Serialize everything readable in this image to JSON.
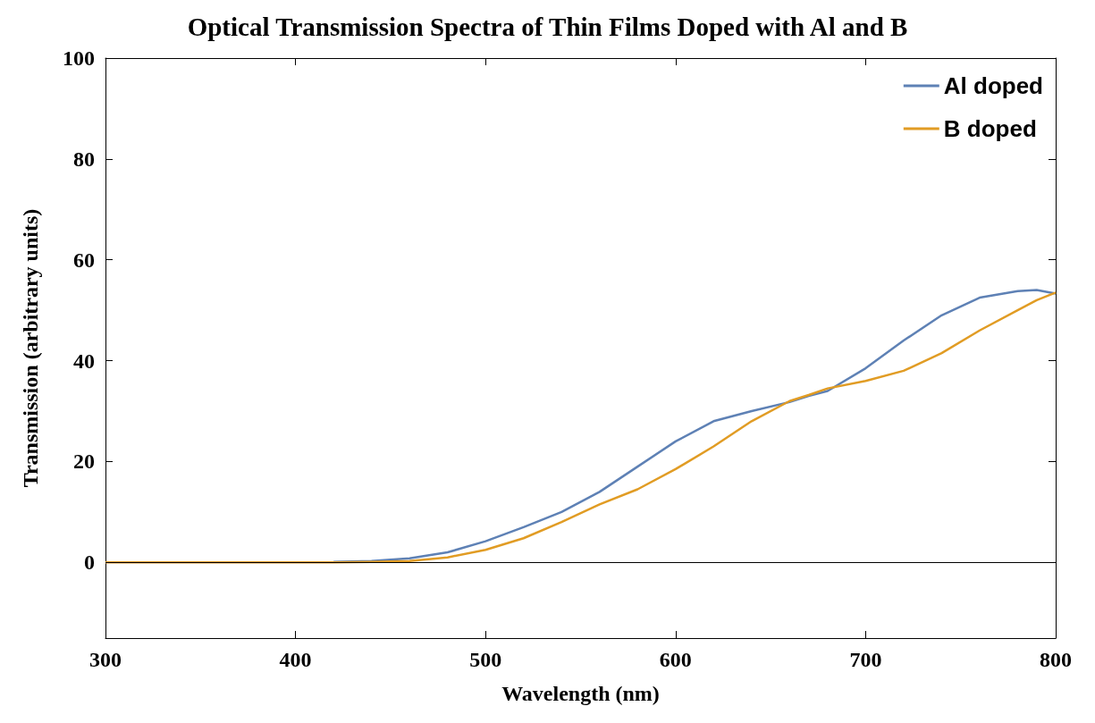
{
  "chart_data": {
    "type": "line",
    "title": "Optical Transmission Spectra of Thin Films Doped with Al and B",
    "xlabel": "Wavelength (nm)",
    "ylabel": "Transmission (arbitrary units)",
    "x": [
      300,
      350,
      400,
      420,
      440,
      460,
      480,
      500,
      520,
      540,
      560,
      580,
      600,
      620,
      640,
      660,
      670,
      680,
      700,
      720,
      740,
      760,
      780,
      790,
      800
    ],
    "series": [
      {
        "name": "Al doped",
        "color": "#5e81b5",
        "values": [
          null,
          null,
          null,
          0.1,
          0.3,
          0.8,
          2,
          4.2,
          7,
          10,
          14,
          19,
          24,
          28,
          30,
          31.8,
          33,
          34,
          38.5,
          44,
          49,
          52.5,
          53.8,
          54,
          53.3
        ]
      },
      {
        "name": "B doped",
        "color": "#e19c24",
        "values": [
          0,
          0,
          0,
          0,
          0.1,
          0.3,
          1,
          2.5,
          4.8,
          8,
          11.5,
          14.5,
          18.5,
          23,
          28,
          32,
          33.2,
          34.5,
          36,
          38,
          41.5,
          46,
          50,
          52,
          53.5
        ]
      }
    ],
    "xlim": [
      300,
      800
    ],
    "xticks": [
      300,
      400,
      500,
      600,
      700,
      800
    ],
    "ylim": [
      -15,
      100
    ],
    "yticks": [
      0,
      20,
      40,
      60,
      80,
      100
    ],
    "ref_lines": [
      {
        "axis": "y",
        "value": 0,
        "color": "#000000"
      }
    ],
    "grid": false,
    "legend": "top right",
    "marker": "none",
    "line_style": "solid"
  }
}
